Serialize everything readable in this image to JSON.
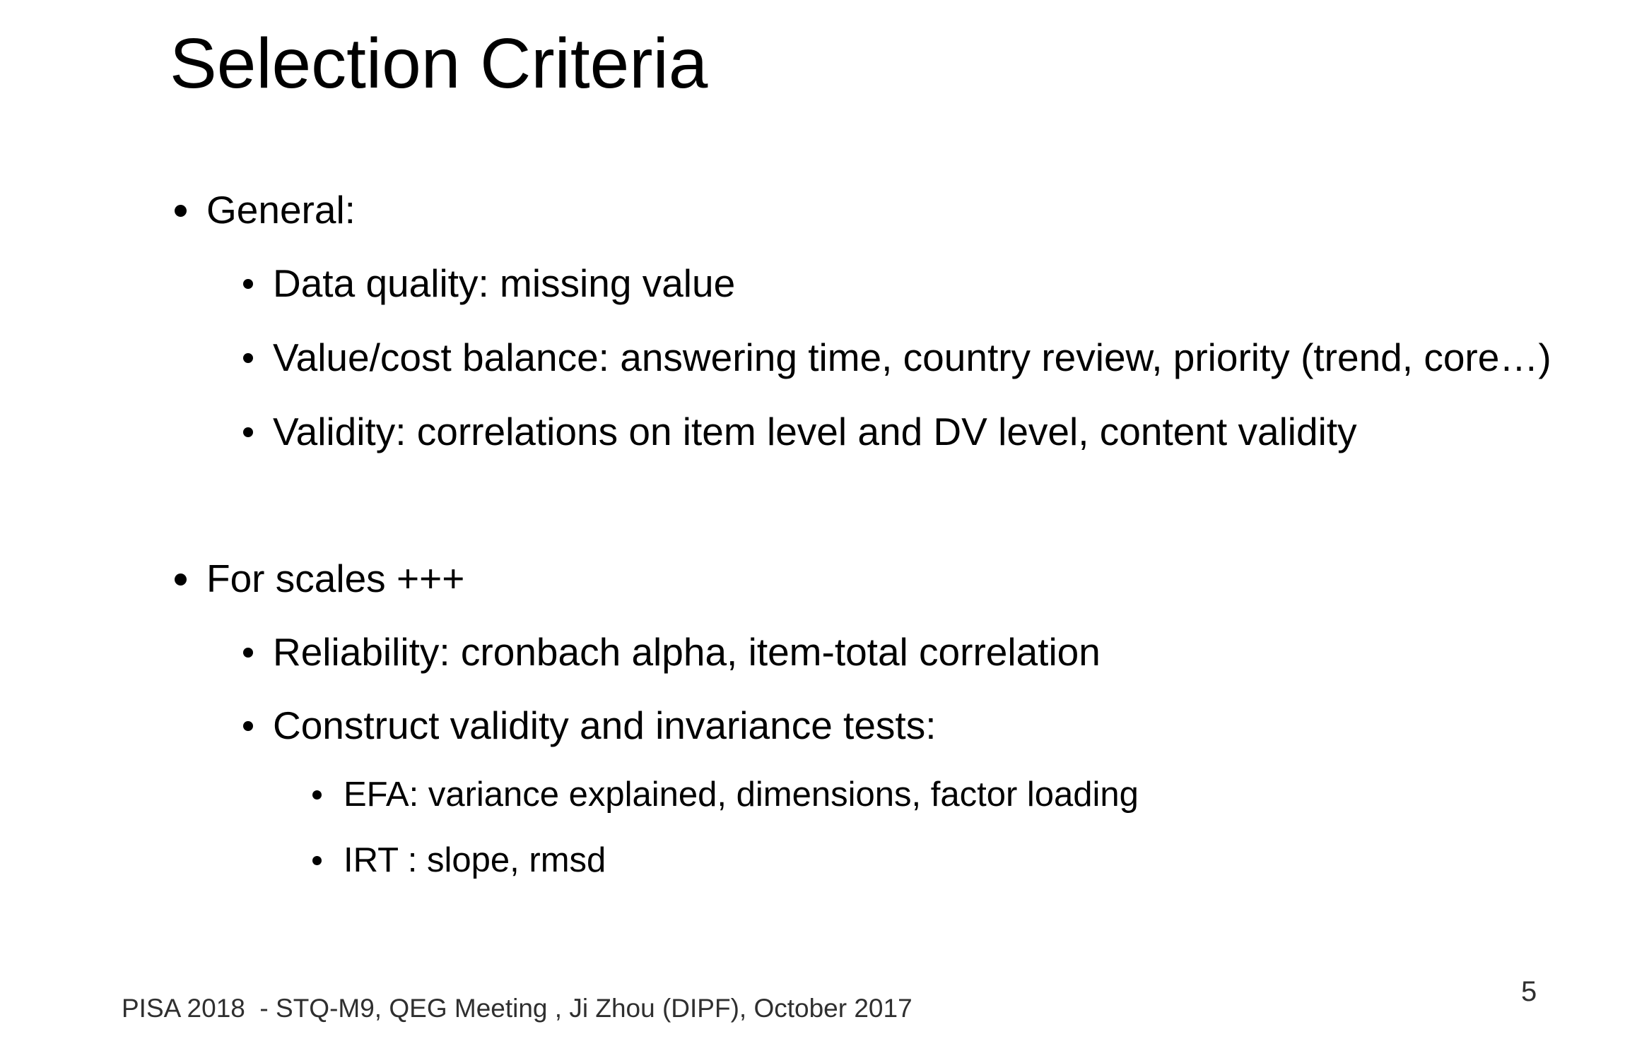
{
  "slide": {
    "title": "Selection Criteria",
    "bullets": [
      {
        "level": 1,
        "text": "General:"
      },
      {
        "level": 2,
        "text": "Data quality: missing value"
      },
      {
        "level": 2,
        "text": "Value/cost balance: answering time, country review, priority (trend, core…)"
      },
      {
        "level": 2,
        "text": "Validity: correlations on item level and DV level, content validity"
      },
      {
        "level": 1,
        "text": "For scales +++"
      },
      {
        "level": 2,
        "text": "Reliability: cronbach alpha, item-total correlation"
      },
      {
        "level": 2,
        "text": "Construct validity and invariance tests:"
      },
      {
        "level": 3,
        "text": "EFA: variance explained, dimensions, factor loading"
      },
      {
        "level": 3,
        "text": "IRT : slope, rmsd"
      }
    ],
    "footer": "PISA 2018  - STQ-M9, QEG Meeting , Ji Zhou (DIPF), October 2017",
    "page_number": "5"
  }
}
